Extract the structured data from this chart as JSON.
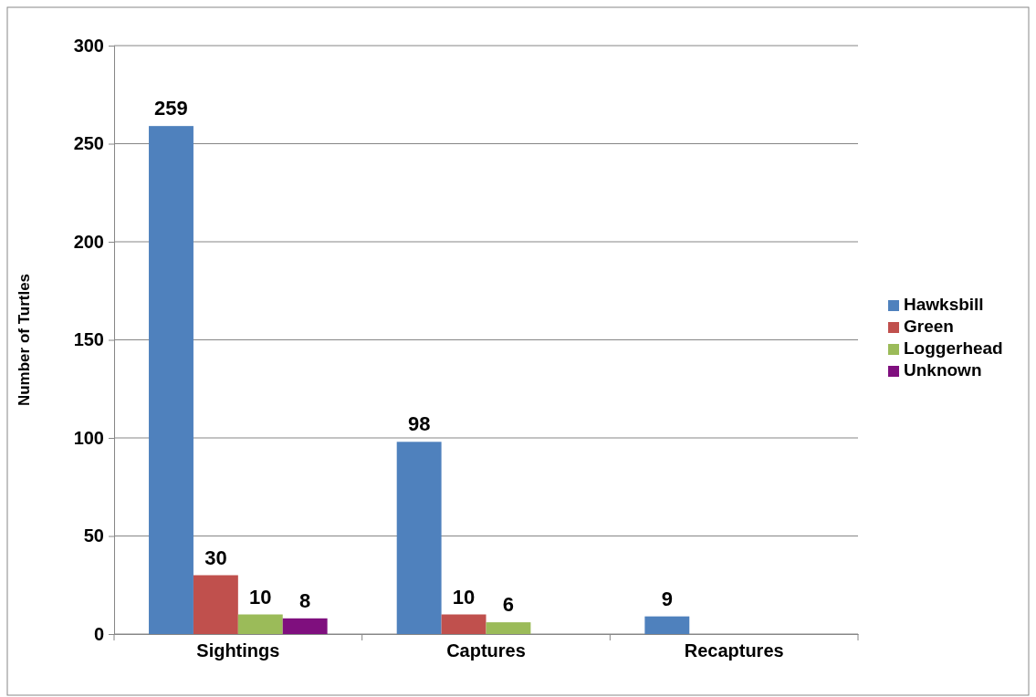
{
  "chart_data": {
    "type": "bar",
    "ylabel": "Number of Turtles",
    "categories": [
      "Sightings",
      "Captures",
      "Recaptures"
    ],
    "series": [
      {
        "name": "Hawksbill",
        "color": "#4f81bd",
        "values": [
          259,
          98,
          9
        ]
      },
      {
        "name": "Green",
        "color": "#c0504d",
        "values": [
          30,
          10,
          null
        ]
      },
      {
        "name": "Loggerhead",
        "color": "#9bbb59",
        "values": [
          10,
          6,
          null
        ]
      },
      {
        "name": "Unknown",
        "color": "#7f0f7e",
        "values": [
          8,
          null,
          null
        ]
      }
    ],
    "ylim": [
      0,
      300
    ],
    "yticks": [
      0,
      50,
      100,
      150,
      200,
      250,
      300
    ],
    "grid": "y",
    "legend": "right",
    "data_labels": true
  }
}
